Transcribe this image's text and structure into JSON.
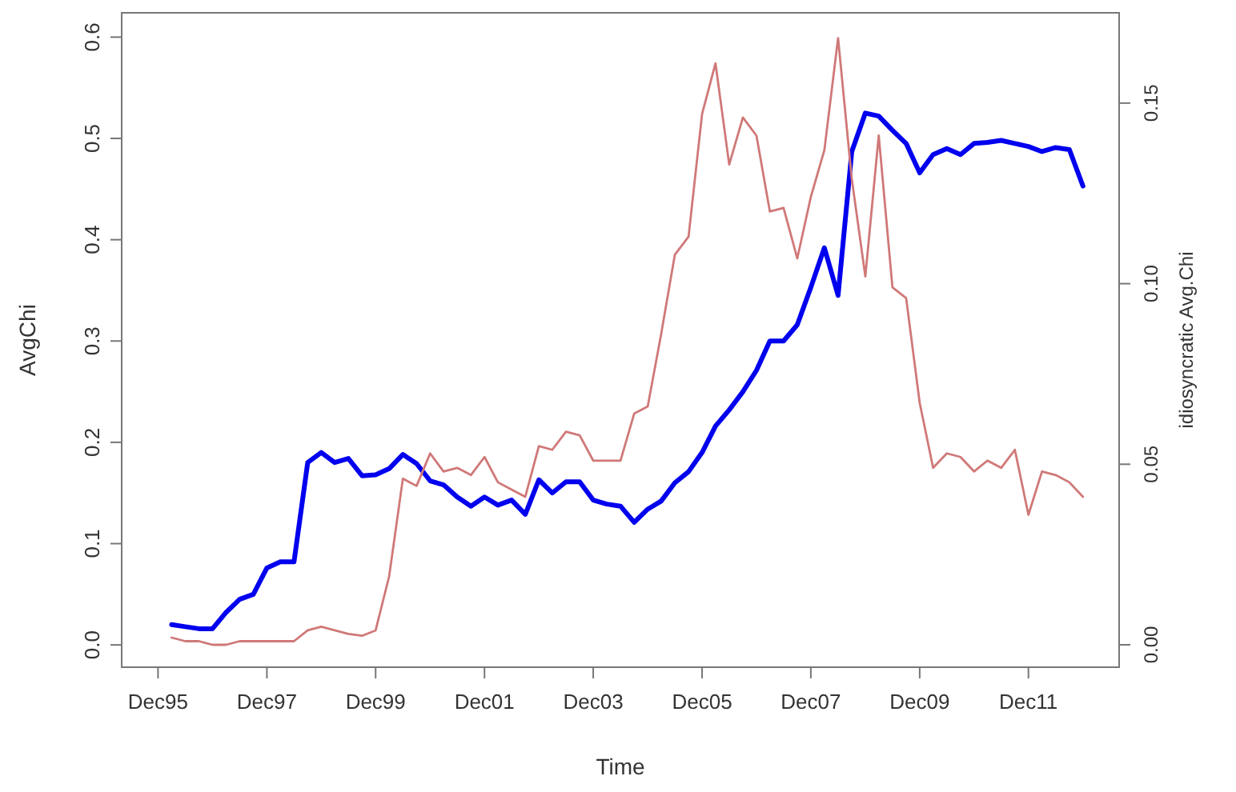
{
  "chart_data": {
    "type": "line",
    "xlabel": "Time",
    "ylabel": "AvgChi",
    "y2label": "idiosyncratic Avg.Chi",
    "x": [
      "1996-03",
      "1996-06",
      "1996-09",
      "1996-12",
      "1997-03",
      "1997-06",
      "1997-09",
      "1997-12",
      "1998-03",
      "1998-06",
      "1998-09",
      "1998-12",
      "1999-03",
      "1999-06",
      "1999-09",
      "1999-12",
      "2000-03",
      "2000-06",
      "2000-09",
      "2000-12",
      "2001-03",
      "2001-06",
      "2001-09",
      "2001-12",
      "2002-03",
      "2002-06",
      "2002-09",
      "2002-12",
      "2003-03",
      "2003-06",
      "2003-09",
      "2003-12",
      "2004-03",
      "2004-06",
      "2004-09",
      "2004-12",
      "2005-03",
      "2005-06",
      "2005-09",
      "2005-12",
      "2006-03",
      "2006-06",
      "2006-09",
      "2006-12",
      "2007-03",
      "2007-06",
      "2007-09",
      "2007-12",
      "2008-03",
      "2008-06",
      "2008-09",
      "2008-12",
      "2009-03",
      "2009-06",
      "2009-09",
      "2009-12",
      "2010-03",
      "2010-06",
      "2010-09",
      "2010-12",
      "2011-03",
      "2011-06",
      "2011-09",
      "2011-12",
      "2012-03",
      "2012-06",
      "2012-09",
      "2012-12"
    ],
    "series": [
      {
        "color": "#0000ee",
        "values": [
          0.02,
          0.018,
          0.016,
          0.016,
          0.032,
          0.045,
          0.05,
          0.076,
          0.082,
          0.082,
          0.18,
          0.19,
          0.18,
          0.184,
          0.167,
          0.168,
          0.174,
          0.188,
          0.179,
          0.162,
          0.158,
          0.146,
          0.137,
          0.146,
          0.138,
          0.143,
          0.129,
          0.163,
          0.15,
          0.161,
          0.161,
          0.143,
          0.139,
          0.137,
          0.121,
          0.134,
          0.142,
          0.16,
          0.171,
          0.19,
          0.216,
          0.232,
          0.25,
          0.271,
          0.3,
          0.3,
          0.316,
          0.353,
          0.392,
          0.345,
          0.487,
          0.525,
          0.522,
          0.508,
          0.495,
          0.466,
          0.484,
          0.49,
          0.484,
          0.495,
          0.496,
          0.498,
          0.495,
          0.492,
          0.487,
          0.491,
          0.489,
          0.453
        ]
      },
      {
        "color": "#d07878",
        "axis": "y2",
        "values": [
          0.002,
          0.001,
          0.001,
          0.0,
          0.0,
          0.001,
          0.001,
          0.001,
          0.001,
          0.001,
          0.004,
          0.005,
          0.004,
          0.003,
          0.0025,
          0.004,
          0.019,
          0.046,
          0.044,
          0.053,
          0.048,
          0.049,
          0.047,
          0.052,
          0.045,
          0.043,
          0.041,
          0.055,
          0.054,
          0.059,
          0.058,
          0.051,
          0.051,
          0.051,
          0.064,
          0.066,
          0.086,
          0.108,
          0.113,
          0.147,
          0.161,
          0.133,
          0.146,
          0.141,
          0.12,
          0.121,
          0.107,
          0.124,
          0.137,
          0.168,
          0.129,
          0.102,
          0.141,
          0.099,
          0.096,
          0.067,
          0.049,
          0.053,
          0.052,
          0.048,
          0.051,
          0.049,
          0.054,
          0.036,
          0.048,
          0.047,
          0.045,
          0.041
        ]
      }
    ],
    "xlim": [
      "1995-04",
      "2013-08"
    ],
    "xticks": [
      {
        "value": "1995-12",
        "label": "Dec95"
      },
      {
        "value": "1997-12",
        "label": "Dec97"
      },
      {
        "value": "1999-12",
        "label": "Dec99"
      },
      {
        "value": "2001-12",
        "label": "Dec01"
      },
      {
        "value": "2003-12",
        "label": "Dec03"
      },
      {
        "value": "2005-12",
        "label": "Dec05"
      },
      {
        "value": "2007-12",
        "label": "Dec07"
      },
      {
        "value": "2009-12",
        "label": "Dec09"
      },
      {
        "value": "2011-12",
        "label": "Dec11"
      }
    ],
    "ylim": [
      -0.022,
      0.624
    ],
    "yticks": [
      {
        "value": 0,
        "label": "0.0"
      },
      {
        "value": 0.1,
        "label": "0.1"
      },
      {
        "value": 0.2,
        "label": "0.2"
      },
      {
        "value": 0.3,
        "label": "0.3"
      },
      {
        "value": 0.4,
        "label": "0.4"
      },
      {
        "value": 0.5,
        "label": "0.5"
      },
      {
        "value": 0.6,
        "label": "0.6"
      }
    ],
    "y2lim": [
      -0.0062,
      0.175
    ],
    "y2ticks": [
      {
        "value": 0,
        "label": "0.00"
      },
      {
        "value": 0.05,
        "label": "0.05"
      },
      {
        "value": 0.1,
        "label": "0.10"
      },
      {
        "value": 0.15,
        "label": "0.15"
      }
    ],
    "grid": false,
    "marker": "none",
    "line_style": "solid"
  }
}
